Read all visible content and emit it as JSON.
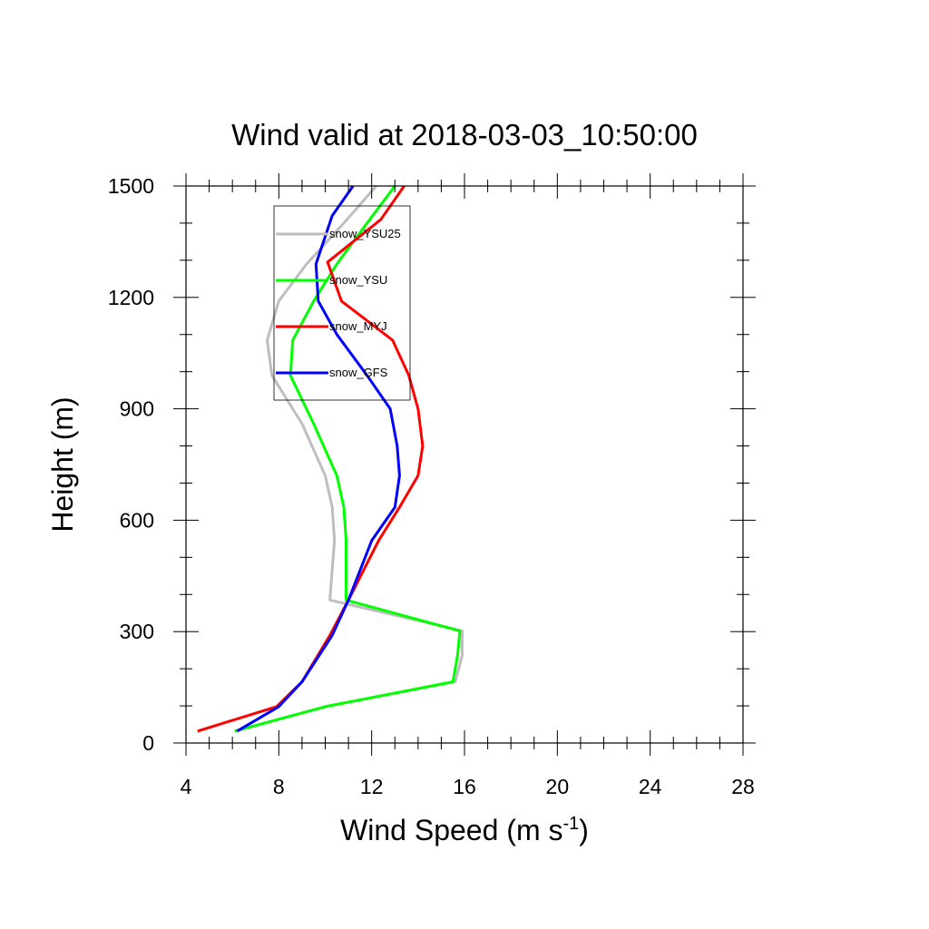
{
  "chart_data": {
    "type": "line",
    "title": "Wind valid at 2018-03-03_10:50:00",
    "xlabel": "Wind Speed (m s",
    "xlabel_sup": "-1",
    "xlabel_close": ")",
    "ylabel": "Height (m)",
    "xlim": [
      4,
      28
    ],
    "ylim": [
      0,
      1500
    ],
    "xticks": [
      4,
      8,
      12,
      16,
      20,
      24,
      28
    ],
    "yticks": [
      0,
      300,
      600,
      900,
      1200,
      1500
    ],
    "legend_position": "top-left inside",
    "grid": false,
    "series": [
      {
        "name": "snow_YSU25",
        "color": "#bebebe",
        "points": [
          [
            6.1,
            32
          ],
          [
            10.0,
            98
          ],
          [
            15.6,
            165
          ],
          [
            15.9,
            235
          ],
          [
            15.9,
            302
          ],
          [
            10.2,
            385
          ],
          [
            10.4,
            545
          ],
          [
            10.3,
            635
          ],
          [
            10.0,
            720
          ],
          [
            9.0,
            860
          ],
          [
            7.7,
            990
          ],
          [
            7.5,
            1085
          ],
          [
            8.0,
            1190
          ],
          [
            9.2,
            1290
          ],
          [
            10.8,
            1400
          ],
          [
            12.2,
            1500
          ]
        ]
      },
      {
        "name": "snow_YSU",
        "color": "#00ff00",
        "points": [
          [
            6.1,
            32
          ],
          [
            10.0,
            98
          ],
          [
            15.5,
            165
          ],
          [
            15.7,
            235
          ],
          [
            15.8,
            302
          ],
          [
            10.9,
            385
          ],
          [
            10.9,
            545
          ],
          [
            10.8,
            635
          ],
          [
            10.5,
            720
          ],
          [
            9.5,
            860
          ],
          [
            8.5,
            990
          ],
          [
            8.6,
            1085
          ],
          [
            9.5,
            1190
          ],
          [
            10.5,
            1290
          ],
          [
            11.8,
            1400
          ],
          [
            13.0,
            1500
          ]
        ]
      },
      {
        "name": "snow_MYJ",
        "color": "#ff0000",
        "points": [
          [
            4.5,
            32
          ],
          [
            7.9,
            98
          ],
          [
            9.0,
            165
          ],
          [
            10.2,
            290
          ],
          [
            11.0,
            385
          ],
          [
            12.3,
            545
          ],
          [
            13.2,
            635
          ],
          [
            14.0,
            720
          ],
          [
            14.2,
            800
          ],
          [
            14.0,
            900
          ],
          [
            13.6,
            990
          ],
          [
            12.9,
            1085
          ],
          [
            10.7,
            1190
          ],
          [
            10.1,
            1295
          ],
          [
            12.4,
            1410
          ],
          [
            13.4,
            1500
          ]
        ]
      },
      {
        "name": "snow_GFS",
        "color": "#0000ff",
        "points": [
          [
            6.2,
            32
          ],
          [
            8.0,
            98
          ],
          [
            9.0,
            165
          ],
          [
            10.3,
            290
          ],
          [
            11.0,
            385
          ],
          [
            12.0,
            545
          ],
          [
            13.0,
            635
          ],
          [
            13.2,
            720
          ],
          [
            13.1,
            800
          ],
          [
            12.8,
            900
          ],
          [
            11.8,
            990
          ],
          [
            10.5,
            1100
          ],
          [
            9.7,
            1190
          ],
          [
            9.6,
            1290
          ],
          [
            10.3,
            1420
          ],
          [
            11.2,
            1500
          ]
        ]
      }
    ]
  }
}
